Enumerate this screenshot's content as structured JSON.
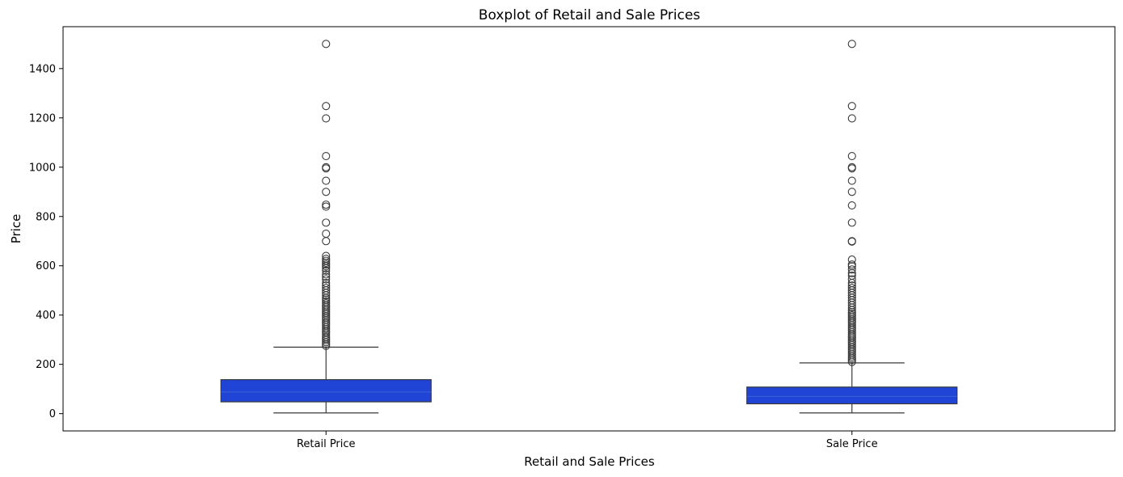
{
  "chart_data": {
    "type": "boxplot",
    "title": "Boxplot of Retail and Sale Prices",
    "xlabel": "Retail and Sale Prices",
    "ylabel": "Price",
    "ylim": [
      -70,
      1570
    ],
    "yticks": [
      0,
      200,
      400,
      600,
      800,
      1000,
      1200,
      1400
    ],
    "grid": false,
    "box_color": "#1f44d6",
    "line_color": "#3a3a3a",
    "categories": [
      "Retail Price",
      "Sale Price"
    ],
    "boxes": [
      {
        "category": "Retail Price",
        "whisker_low": 3,
        "q1": 48,
        "median": 88,
        "q3": 138,
        "whisker_high": 270,
        "outliers": [
          275,
          282,
          290,
          298,
          305,
          312,
          320,
          328,
          335,
          343,
          350,
          358,
          365,
          372,
          380,
          388,
          395,
          403,
          410,
          418,
          425,
          433,
          440,
          448,
          455,
          463,
          470,
          480,
          490,
          500,
          510,
          520,
          530,
          545,
          555,
          565,
          580,
          590,
          598,
          605,
          612,
          620,
          628,
          640,
          700,
          730,
          775,
          840,
          848,
          900,
          945,
          995,
          1000,
          1045,
          1198,
          1248,
          1500
        ]
      },
      {
        "category": "Sale Price",
        "whisker_low": 3,
        "q1": 40,
        "median": 70,
        "q3": 108,
        "whisker_high": 206,
        "outliers": [
          210,
          218,
          225,
          232,
          240,
          248,
          255,
          262,
          270,
          278,
          285,
          292,
          300,
          308,
          315,
          322,
          330,
          338,
          345,
          352,
          360,
          368,
          375,
          382,
          390,
          398,
          405,
          412,
          420,
          430,
          440,
          450,
          460,
          470,
          480,
          490,
          500,
          510,
          520,
          530,
          545,
          560,
          570,
          585,
          598,
          605,
          625,
          698,
          700,
          775,
          845,
          900,
          945,
          995,
          1000,
          1045,
          1198,
          1248,
          1500
        ]
      }
    ]
  }
}
